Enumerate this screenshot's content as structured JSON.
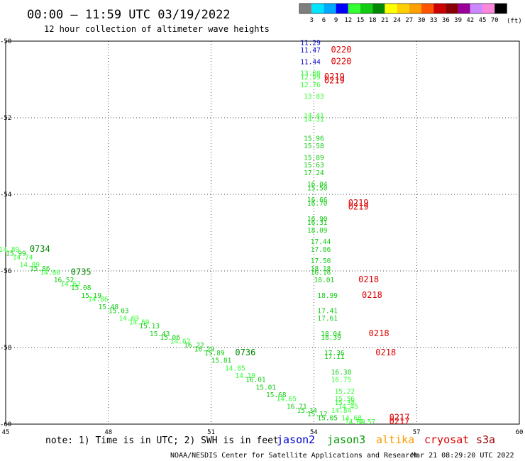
{
  "header": {
    "title": "00:00 — 11:59 UTC 03/19/2022",
    "subtitle": "12 hour collection of altimeter wave heights"
  },
  "colorbar": {
    "unit": "(ft)",
    "labels": [
      "3",
      "6",
      "9",
      "12",
      "15",
      "18",
      "21",
      "24",
      "27",
      "30",
      "33",
      "36",
      "39",
      "42",
      "45",
      "70"
    ],
    "colors": [
      "#7f7f7f",
      "#00e5ff",
      "#00a8ff",
      "#0000ff",
      "#33ff33",
      "#11cc11",
      "#008800",
      "#ffff00",
      "#ffd000",
      "#ffa000",
      "#ff5500",
      "#cc0000",
      "#880000",
      "#990099",
      "#cc88ff",
      "#ff88dd",
      "#000000"
    ]
  },
  "footer": {
    "note": "note: 1) Time is in UTC; 2) SWH is in feet",
    "credit": "NOAA/NESDIS Center for Satellite Applications and Research",
    "timestamp": "Mar 21 08:29:20 UTC 2022",
    "satellites": [
      {
        "name": "jason2",
        "color": "#0000cc"
      },
      {
        "name": "jason3",
        "color": "#009900"
      },
      {
        "name": "altika",
        "color": "#ff9900"
      },
      {
        "name": "cryosat",
        "color": "#dd0000"
      },
      {
        "name": "s3a",
        "color": "#990000"
      }
    ]
  },
  "chart_data": {
    "type": "scatter",
    "title": "",
    "xlabel": "",
    "ylabel": "",
    "xlim": [
      45,
      60
    ],
    "ylim": [
      -60,
      -50
    ],
    "xticks": [
      "45",
      "48",
      "51",
      "54",
      "57",
      "60"
    ],
    "yticks": [
      "-50",
      "-52",
      "-54",
      "-56",
      "-58",
      "-60"
    ],
    "grid": true,
    "points": [
      {
        "x": 53.9,
        "y": -50.1,
        "v": "11.29",
        "c": "#0000cc"
      },
      {
        "x": 53.9,
        "y": -50.3,
        "v": "11.47",
        "c": "#0000cc"
      },
      {
        "x": 53.9,
        "y": -50.6,
        "v": "11.44",
        "c": "#0000cc"
      },
      {
        "x": 53.9,
        "y": -50.9,
        "v": "13.00",
        "c": "#33ff33"
      },
      {
        "x": 53.9,
        "y": -51.0,
        "v": "12.99",
        "c": "#33ff33"
      },
      {
        "x": 53.9,
        "y": -51.2,
        "v": "12.76",
        "c": "#33ff33"
      },
      {
        "x": 54.0,
        "y": -51.5,
        "v": "13.83",
        "c": "#33ff33"
      },
      {
        "x": 54.0,
        "y": -52.0,
        "v": "14.41",
        "c": "#33ff33"
      },
      {
        "x": 54.0,
        "y": -52.1,
        "v": "14.31",
        "c": "#33ff33"
      },
      {
        "x": 54.0,
        "y": -52.6,
        "v": "15.96",
        "c": "#11cc11"
      },
      {
        "x": 54.0,
        "y": -52.8,
        "v": "15.58",
        "c": "#11cc11"
      },
      {
        "x": 54.0,
        "y": -53.1,
        "v": "15.89",
        "c": "#11cc11"
      },
      {
        "x": 54.0,
        "y": -53.3,
        "v": "15.63",
        "c": "#11cc11"
      },
      {
        "x": 54.0,
        "y": -53.5,
        "v": "17.24",
        "c": "#11cc11"
      },
      {
        "x": 54.1,
        "y": -53.8,
        "v": "16.04",
        "c": "#11cc11"
      },
      {
        "x": 54.1,
        "y": -53.9,
        "v": "15.50",
        "c": "#11cc11"
      },
      {
        "x": 54.1,
        "y": -54.2,
        "v": "16.66",
        "c": "#11cc11"
      },
      {
        "x": 54.1,
        "y": -54.3,
        "v": "16.70",
        "c": "#11cc11"
      },
      {
        "x": 54.1,
        "y": -54.7,
        "v": "16.90",
        "c": "#11cc11"
      },
      {
        "x": 54.1,
        "y": -54.8,
        "v": "16.31",
        "c": "#11cc11"
      },
      {
        "x": 54.1,
        "y": -55.0,
        "v": "18.09",
        "c": "#11cc11"
      },
      {
        "x": 54.2,
        "y": -55.3,
        "v": "17.44",
        "c": "#11cc11"
      },
      {
        "x": 54.2,
        "y": -55.5,
        "v": "17.86",
        "c": "#11cc11"
      },
      {
        "x": 54.2,
        "y": -55.8,
        "v": "17.50",
        "c": "#11cc11"
      },
      {
        "x": 54.2,
        "y": -56.0,
        "v": "18.18",
        "c": "#11cc11"
      },
      {
        "x": 54.2,
        "y": -56.1,
        "v": "16.16",
        "c": "#11cc11"
      },
      {
        "x": 54.3,
        "y": -56.3,
        "v": "18.01",
        "c": "#11cc11"
      },
      {
        "x": 54.4,
        "y": -56.7,
        "v": "18.99",
        "c": "#11cc11"
      },
      {
        "x": 54.4,
        "y": -57.1,
        "v": "17.41",
        "c": "#11cc11"
      },
      {
        "x": 54.4,
        "y": -57.3,
        "v": "17.61",
        "c": "#11cc11"
      },
      {
        "x": 54.5,
        "y": -57.7,
        "v": "18.04",
        "c": "#11cc11"
      },
      {
        "x": 54.5,
        "y": -57.8,
        "v": "18.39",
        "c": "#11cc11"
      },
      {
        "x": 54.6,
        "y": -58.2,
        "v": "17.36",
        "c": "#11cc11"
      },
      {
        "x": 54.6,
        "y": -58.3,
        "v": "17.11",
        "c": "#11cc11"
      },
      {
        "x": 54.8,
        "y": -58.7,
        "v": "16.38",
        "c": "#11cc11"
      },
      {
        "x": 54.8,
        "y": -58.9,
        "v": "16.75",
        "c": "#33ff33"
      },
      {
        "x": 54.9,
        "y": -59.2,
        "v": "15.22",
        "c": "#33ff33"
      },
      {
        "x": 54.9,
        "y": -59.4,
        "v": "15.56",
        "c": "#33ff33"
      },
      {
        "x": 54.9,
        "y": -59.5,
        "v": "15.38",
        "c": "#33ff33"
      },
      {
        "x": 55.0,
        "y": -59.6,
        "v": "14.45",
        "c": "#33ff33"
      },
      {
        "x": 54.8,
        "y": -59.7,
        "v": "14.84",
        "c": "#33ff33"
      },
      {
        "x": 55.1,
        "y": -59.9,
        "v": "14.68",
        "c": "#33ff33"
      },
      {
        "x": 55.2,
        "y": -60.0,
        "v": "14.59",
        "c": "#33ff33"
      },
      {
        "x": 55.5,
        "y": -60.0,
        "v": "14.57",
        "c": "#33ff33"
      },
      {
        "x": 45.1,
        "y": -55.5,
        "v": "14.89",
        "c": "#33ff33"
      },
      {
        "x": 45.3,
        "y": -55.6,
        "v": "15.99",
        "c": "#11cc11"
      },
      {
        "x": 45.5,
        "y": -55.7,
        "v": "14.74",
        "c": "#33ff33"
      },
      {
        "x": 45.7,
        "y": -55.9,
        "v": "14.89",
        "c": "#33ff33"
      },
      {
        "x": 46.0,
        "y": -56.0,
        "v": "15.86",
        "c": "#11cc11"
      },
      {
        "x": 46.3,
        "y": -56.1,
        "v": "14.80",
        "c": "#33ff33"
      },
      {
        "x": 46.7,
        "y": -56.3,
        "v": "16.52",
        "c": "#11cc11"
      },
      {
        "x": 46.9,
        "y": -56.4,
        "v": "14.62",
        "c": "#33ff33"
      },
      {
        "x": 47.2,
        "y": -56.5,
        "v": "15.08",
        "c": "#11cc11"
      },
      {
        "x": 47.5,
        "y": -56.7,
        "v": "15.19",
        "c": "#11cc11"
      },
      {
        "x": 47.7,
        "y": -56.8,
        "v": "14.86",
        "c": "#33ff33"
      },
      {
        "x": 48.0,
        "y": -57.0,
        "v": "15.48",
        "c": "#11cc11"
      },
      {
        "x": 48.3,
        "y": -57.1,
        "v": "15.03",
        "c": "#11cc11"
      },
      {
        "x": 48.6,
        "y": -57.3,
        "v": "14.69",
        "c": "#33ff33"
      },
      {
        "x": 48.9,
        "y": -57.4,
        "v": "14.69",
        "c": "#33ff33"
      },
      {
        "x": 49.2,
        "y": -57.5,
        "v": "15.13",
        "c": "#11cc11"
      },
      {
        "x": 49.5,
        "y": -57.7,
        "v": "15.43",
        "c": "#11cc11"
      },
      {
        "x": 49.8,
        "y": -57.8,
        "v": "15.06",
        "c": "#11cc11"
      },
      {
        "x": 50.1,
        "y": -57.9,
        "v": "14.62",
        "c": "#33ff33"
      },
      {
        "x": 50.5,
        "y": -58.0,
        "v": "16.22",
        "c": "#11cc11"
      },
      {
        "x": 50.8,
        "y": -58.1,
        "v": "16.29",
        "c": "#11cc11"
      },
      {
        "x": 51.1,
        "y": -58.2,
        "v": "15.89",
        "c": "#11cc11"
      },
      {
        "x": 51.3,
        "y": -58.4,
        "v": "15.81",
        "c": "#11cc11"
      },
      {
        "x": 51.7,
        "y": -58.6,
        "v": "14.85",
        "c": "#33ff33"
      },
      {
        "x": 52.0,
        "y": -58.8,
        "v": "14.19",
        "c": "#33ff33"
      },
      {
        "x": 52.3,
        "y": -58.9,
        "v": "16.01",
        "c": "#11cc11"
      },
      {
        "x": 52.6,
        "y": -59.1,
        "v": "15.01",
        "c": "#11cc11"
      },
      {
        "x": 52.9,
        "y": -59.3,
        "v": "15.68",
        "c": "#11cc11"
      },
      {
        "x": 53.2,
        "y": -59.4,
        "v": "14.65",
        "c": "#33ff33"
      },
      {
        "x": 53.5,
        "y": -59.6,
        "v": "16.71",
        "c": "#11cc11"
      },
      {
        "x": 53.8,
        "y": -59.7,
        "v": "15.34",
        "c": "#11cc11"
      },
      {
        "x": 54.1,
        "y": -59.8,
        "v": "15.12",
        "c": "#11cc11"
      },
      {
        "x": 54.4,
        "y": -59.9,
        "v": "15.05",
        "c": "#11cc11"
      }
    ],
    "pass_labels": [
      {
        "x": 54.8,
        "y": -50.3,
        "text": "0220",
        "c": "#dd0000"
      },
      {
        "x": 54.8,
        "y": -50.6,
        "text": "0220",
        "c": "#dd0000"
      },
      {
        "x": 54.6,
        "y": -51.0,
        "text": "0219",
        "c": "#dd0000"
      },
      {
        "x": 54.6,
        "y": -51.1,
        "text": "0219",
        "c": "#dd0000"
      },
      {
        "x": 55.3,
        "y": -54.3,
        "text": "0219",
        "c": "#dd0000"
      },
      {
        "x": 55.3,
        "y": -54.4,
        "text": "0219",
        "c": "#dd0000"
      },
      {
        "x": 55.6,
        "y": -56.3,
        "text": "0218",
        "c": "#dd0000"
      },
      {
        "x": 55.7,
        "y": -56.7,
        "text": "0218",
        "c": "#dd0000"
      },
      {
        "x": 55.9,
        "y": -57.7,
        "text": "0218",
        "c": "#dd0000"
      },
      {
        "x": 56.1,
        "y": -58.2,
        "text": "0218",
        "c": "#dd0000"
      },
      {
        "x": 56.5,
        "y": -59.9,
        "text": "0217",
        "c": "#dd0000"
      },
      {
        "x": 56.5,
        "y": -60.0,
        "text": "0217",
        "c": "#dd0000"
      },
      {
        "x": 46.0,
        "y": -55.5,
        "text": "0734",
        "c": "#008800"
      },
      {
        "x": 47.2,
        "y": -56.1,
        "text": "0735",
        "c": "#008800"
      },
      {
        "x": 52.0,
        "y": -58.2,
        "text": "0736",
        "c": "#008800"
      }
    ]
  }
}
